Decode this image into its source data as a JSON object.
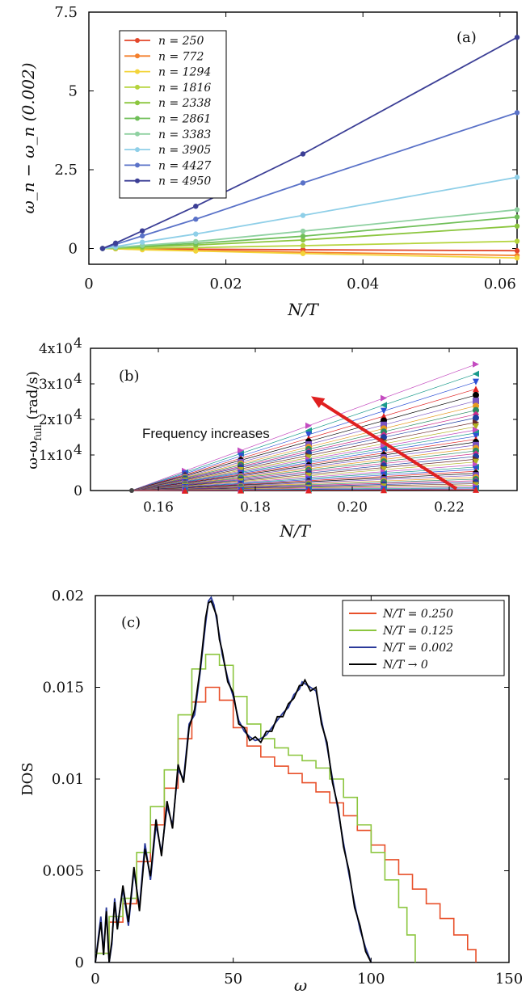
{
  "chart_data": [
    {
      "type": "line",
      "panel_label": "(a)",
      "xlabel": "N/T",
      "ylabel": "ω_n − ω_n (0.002)",
      "xlim": [
        0,
        0.0625
      ],
      "ylim": [
        -0.5,
        7.5
      ],
      "xticks": [
        0,
        0.02,
        0.04,
        0.06
      ],
      "xtick_labels": [
        "0",
        "0.02",
        "0.04",
        "0.06"
      ],
      "yticks": [
        0,
        2.5,
        5,
        7.5
      ],
      "ytick_labels": [
        "0",
        "2.5",
        "5",
        "7.5"
      ],
      "legend_position": "top-left",
      "x": [
        0.002,
        0.0039,
        0.0078,
        0.0156,
        0.03125,
        0.0625
      ],
      "series": [
        {
          "name": "n = 250",
          "color": "#e3462a",
          "values": [
            0,
            -0.005,
            -0.01,
            -0.02,
            -0.04,
            -0.07
          ]
        },
        {
          "name": "n = 772",
          "color": "#f47f2c",
          "values": [
            0,
            -0.01,
            -0.03,
            -0.06,
            -0.12,
            -0.22
          ]
        },
        {
          "name": "n = 1294",
          "color": "#f3d43a",
          "values": [
            0,
            -0.01,
            -0.04,
            -0.08,
            -0.16,
            -0.3
          ]
        },
        {
          "name": "n = 1816",
          "color": "#b5d43c",
          "values": [
            0,
            0.005,
            0.01,
            0.03,
            0.09,
            0.23
          ]
        },
        {
          "name": "n = 2338",
          "color": "#8cc63f",
          "values": [
            0,
            0.02,
            0.05,
            0.11,
            0.27,
            0.71
          ]
        },
        {
          "name": "n = 2861",
          "color": "#6fbf58",
          "values": [
            0,
            0.03,
            0.08,
            0.16,
            0.39,
            1.0
          ]
        },
        {
          "name": "n = 3383",
          "color": "#8fd1a1",
          "values": [
            0,
            0.03,
            0.1,
            0.22,
            0.55,
            1.23
          ]
        },
        {
          "name": "n = 3905",
          "color": "#8fcfe8",
          "values": [
            0,
            0.06,
            0.2,
            0.46,
            1.05,
            2.26
          ]
        },
        {
          "name": "n = 4427",
          "color": "#5a72c8",
          "values": [
            0,
            0.13,
            0.4,
            0.93,
            2.08,
            4.31
          ]
        },
        {
          "name": "n = 4950",
          "color": "#3c3f96",
          "values": [
            0,
            0.17,
            0.56,
            1.34,
            3.0,
            6.7
          ]
        }
      ]
    },
    {
      "type": "scatter",
      "panel_label": "(b)",
      "xlabel": "N/T",
      "ylabel": "ω-ω",
      "ylabel_sub": "full",
      "ylabel_unit": "(rad/s)",
      "xlim": [
        0.146,
        0.234
      ],
      "ylim": [
        0,
        40000
      ],
      "xticks": [
        0.16,
        0.18,
        0.2,
        0.22
      ],
      "xtick_labels": [
        "0.16",
        "0.18",
        "0.20",
        "0.22"
      ],
      "yticks": [
        0,
        10000,
        20000,
        30000,
        40000
      ],
      "ytick_labels": [
        "0",
        "1x10",
        "2x10",
        "3x10",
        "4x10"
      ],
      "ytick_exponent": "4",
      "annotation": "Frequency increases",
      "x": [
        0.1545,
        0.1655,
        0.177,
        0.191,
        0.2065,
        0.2255
      ],
      "slopes_per_unit": [
        500000,
        462000,
        430000,
        402000,
        378000,
        355000,
        335000,
        318000,
        302000,
        288000,
        270000,
        253000,
        240000,
        228000,
        215000,
        203000,
        192000,
        180000,
        168000,
        157000,
        146000,
        135000,
        124000,
        113000,
        102000,
        93000,
        84000,
        76000,
        68000,
        60000,
        52000,
        45000,
        39000,
        33000,
        27000,
        21000,
        16000,
        11000,
        7000,
        3500
      ],
      "series_colors": [
        "#c44cc0",
        "#1a9a8c",
        "#2b4fd6",
        "#e02222",
        "#000000",
        "#7a55c0",
        "#e69a20",
        "#2a8a60",
        "#cc2a8a",
        "#1f3fa0",
        "#6a2a2a",
        "#b0b020"
      ],
      "arrow": {
        "from": [
          0.2215,
          500
        ],
        "to": [
          0.1915,
          26500
        ],
        "color": "#e02020"
      }
    },
    {
      "type": "line",
      "panel_label": "(c)",
      "xlabel": "ω",
      "ylabel": "DOS",
      "xlim": [
        0,
        150
      ],
      "ylim": [
        0,
        0.02
      ],
      "xticks": [
        0,
        50,
        100,
        150
      ],
      "xtick_labels": [
        "0",
        "50",
        "100",
        "150"
      ],
      "yticks": [
        0,
        0.005,
        0.01,
        0.015,
        0.02
      ],
      "ytick_labels": [
        "0",
        "0.005",
        "0.01",
        "0.015",
        "0.02"
      ],
      "legend_position": "top-right",
      "series": [
        {
          "name": "N/T = 0.250",
          "color": "#e8502a",
          "style": "step",
          "x": [
            0,
            5,
            10,
            15,
            20,
            25,
            30,
            35,
            40,
            45,
            50,
            55,
            60,
            65,
            70,
            75,
            80,
            85,
            90,
            95,
            100,
            105,
            110,
            115,
            120,
            125,
            130,
            135,
            138
          ],
          "values": [
            0.0005,
            0.0022,
            0.0032,
            0.0055,
            0.0075,
            0.0095,
            0.0122,
            0.0142,
            0.015,
            0.0143,
            0.0128,
            0.0118,
            0.0112,
            0.0107,
            0.0103,
            0.0098,
            0.0093,
            0.0087,
            0.008,
            0.0072,
            0.0064,
            0.0056,
            0.0048,
            0.004,
            0.0032,
            0.0024,
            0.0015,
            0.0007,
            0
          ]
        },
        {
          "name": "N/T = 0.125",
          "color": "#8cc63f",
          "style": "step",
          "x": [
            0,
            5,
            10,
            15,
            20,
            25,
            30,
            35,
            40,
            45,
            50,
            55,
            60,
            65,
            70,
            75,
            80,
            85,
            90,
            95,
            100,
            105,
            110,
            113,
            116
          ],
          "values": [
            0.0005,
            0.0025,
            0.0035,
            0.006,
            0.0085,
            0.0105,
            0.0135,
            0.016,
            0.0168,
            0.0162,
            0.0145,
            0.013,
            0.0122,
            0.0117,
            0.0113,
            0.011,
            0.0106,
            0.01,
            0.009,
            0.0075,
            0.006,
            0.0045,
            0.003,
            0.0015,
            0
          ]
        },
        {
          "name": "N/T = 0.002",
          "color": "#2a3a9a",
          "style": "line",
          "x": [
            0,
            2,
            3,
            4,
            5,
            6,
            7,
            8,
            10,
            12,
            14,
            16,
            18,
            20,
            22,
            24,
            26,
            28,
            30,
            32,
            34,
            36,
            38,
            40,
            41,
            42,
            43,
            44,
            45,
            46,
            48,
            50,
            52,
            54,
            56,
            58,
            60,
            62,
            64,
            66,
            68,
            70,
            72,
            74,
            75,
            76,
            78,
            80,
            82,
            84,
            86,
            88,
            90,
            92,
            94,
            96,
            98,
            100
          ],
          "values": [
            0,
            0.0025,
            0.0005,
            0.003,
            0,
            0.001,
            0.0035,
            0.002,
            0.004,
            0.002,
            0.005,
            0.003,
            0.0065,
            0.0045,
            0.0075,
            0.006,
            0.0085,
            0.0075,
            0.0105,
            0.01,
            0.013,
            0.0135,
            0.0158,
            0.0185,
            0.0197,
            0.0199,
            0.0195,
            0.0187,
            0.0178,
            0.0168,
            0.0155,
            0.0145,
            0.0132,
            0.0126,
            0.0123,
            0.0121,
            0.0122,
            0.0124,
            0.0128,
            0.0132,
            0.0136,
            0.0139,
            0.0146,
            0.0149,
            0.0153,
            0.0152,
            0.015,
            0.0148,
            0.0132,
            0.0118,
            0.01,
            0.0083,
            0.0065,
            0.0048,
            0.0032,
            0.0018,
            0.0008,
            0
          ]
        },
        {
          "name": "N/T → 0",
          "color": "#000000",
          "style": "line",
          "x": [
            0,
            2,
            3,
            4,
            5,
            6,
            7,
            8,
            10,
            12,
            14,
            16,
            18,
            20,
            22,
            24,
            26,
            28,
            30,
            32,
            34,
            36,
            38,
            40,
            41,
            42,
            43,
            44,
            45,
            46,
            48,
            50,
            52,
            54,
            56,
            58,
            60,
            62,
            64,
            66,
            68,
            70,
            72,
            74,
            75,
            76,
            78,
            80,
            82,
            84,
            86,
            88,
            90,
            92,
            94,
            96,
            98,
            100
          ],
          "values": [
            0,
            0.0022,
            0.0004,
            0.0028,
            0,
            0.0012,
            0.0033,
            0.0018,
            0.0042,
            0.0022,
            0.0052,
            0.0028,
            0.0062,
            0.0047,
            0.0078,
            0.0058,
            0.0088,
            0.0073,
            0.0108,
            0.0098,
            0.0128,
            0.0138,
            0.016,
            0.0188,
            0.0196,
            0.0197,
            0.0193,
            0.0189,
            0.0176,
            0.017,
            0.0153,
            0.0147,
            0.013,
            0.0128,
            0.0121,
            0.0123,
            0.012,
            0.0126,
            0.0126,
            0.0134,
            0.0134,
            0.0141,
            0.0144,
            0.0151,
            0.0151,
            0.0154,
            0.0148,
            0.015,
            0.013,
            0.012,
            0.0098,
            0.0085,
            0.0063,
            0.005,
            0.003,
            0.002,
            0.0006,
            0
          ]
        }
      ]
    }
  ]
}
